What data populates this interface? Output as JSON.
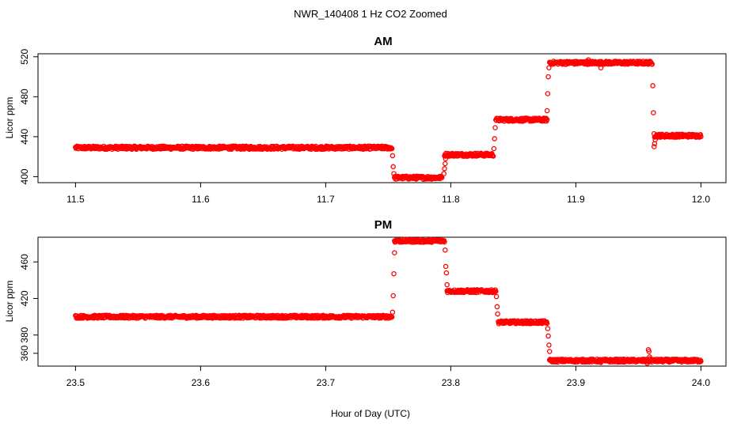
{
  "title": "NWR_140408  1 Hz CO2 Zoomed",
  "xlabel": "Hour of Day (UTC)",
  "colors": {
    "points": "#ff0000",
    "axes": "#000000",
    "background": "#ffffff"
  },
  "chart_data": [
    {
      "type": "scatter",
      "title": "AM",
      "ylabel": "Licor ppm",
      "xlim": [
        11.47,
        12.02
      ],
      "ylim": [
        394,
        523
      ],
      "xticks": [
        11.5,
        11.6,
        11.7,
        11.8,
        11.9,
        12.0
      ],
      "xtick_labels": [
        "11.5",
        "11.6",
        "11.7",
        "11.8",
        "11.9",
        "12.0"
      ],
      "yticks": [
        400,
        440,
        480,
        520
      ],
      "ytick_labels": [
        "400",
        "440",
        "480",
        "520"
      ],
      "segments": [
        {
          "x_start": 11.5,
          "x_end": 11.753,
          "level": 429
        },
        {
          "x_start": 11.755,
          "x_end": 11.793,
          "level": 399
        },
        {
          "x_start": 11.795,
          "x_end": 11.834,
          "level": 422
        },
        {
          "x_start": 11.836,
          "x_end": 11.877,
          "level": 457
        },
        {
          "x_start": 11.879,
          "x_end": 11.961,
          "level": 514
        },
        {
          "x_start": 11.963,
          "x_end": 12.0,
          "level": 441
        }
      ],
      "transition_points": [
        {
          "x": 11.7535,
          "y": 421
        },
        {
          "x": 11.754,
          "y": 410
        },
        {
          "x": 11.7545,
          "y": 403
        },
        {
          "x": 11.7945,
          "y": 403
        },
        {
          "x": 11.795,
          "y": 408
        },
        {
          "x": 11.7955,
          "y": 413
        },
        {
          "x": 11.7958,
          "y": 418
        },
        {
          "x": 11.8345,
          "y": 428
        },
        {
          "x": 11.835,
          "y": 438
        },
        {
          "x": 11.8355,
          "y": 449
        },
        {
          "x": 11.877,
          "y": 466
        },
        {
          "x": 11.8775,
          "y": 483
        },
        {
          "x": 11.878,
          "y": 500
        },
        {
          "x": 11.8785,
          "y": 509
        },
        {
          "x": 11.9615,
          "y": 491
        },
        {
          "x": 11.962,
          "y": 464
        },
        {
          "x": 11.9625,
          "y": 443
        },
        {
          "x": 11.9625,
          "y": 430
        },
        {
          "x": 11.963,
          "y": 433
        },
        {
          "x": 11.9635,
          "y": 437
        },
        {
          "x": 11.92,
          "y": 509
        },
        {
          "x": 11.91,
          "y": 517
        }
      ]
    },
    {
      "type": "scatter",
      "title": "PM",
      "ylabel": "Licor ppm",
      "xlim": [
        23.47,
        24.02
      ],
      "ylim": [
        346,
        487
      ],
      "xticks": [
        23.5,
        23.6,
        23.7,
        23.8,
        23.9,
        24.0
      ],
      "xtick_labels": [
        "23.5",
        "23.6",
        "23.7",
        "23.8",
        "23.9",
        "24.0"
      ],
      "yticks": [
        380,
        420,
        460
      ],
      "ytick_labels": [
        "380",
        "420",
        "460"
      ],
      "extra_ytick_values": [
        360
      ],
      "extra_ytick_labels": [
        "360"
      ],
      "segments": [
        {
          "x_start": 23.5,
          "x_end": 23.753,
          "level": 400
        },
        {
          "x_start": 23.755,
          "x_end": 23.795,
          "level": 483
        },
        {
          "x_start": 23.797,
          "x_end": 23.836,
          "level": 428
        },
        {
          "x_start": 23.838,
          "x_end": 23.877,
          "level": 394
        },
        {
          "x_start": 23.879,
          "x_end": 24.0,
          "level": 352
        }
      ],
      "transition_points": [
        {
          "x": 23.7535,
          "y": 405
        },
        {
          "x": 23.754,
          "y": 423
        },
        {
          "x": 23.7545,
          "y": 447
        },
        {
          "x": 23.755,
          "y": 470
        },
        {
          "x": 23.7955,
          "y": 473
        },
        {
          "x": 23.796,
          "y": 455
        },
        {
          "x": 23.7965,
          "y": 448
        },
        {
          "x": 23.797,
          "y": 435
        },
        {
          "x": 23.8365,
          "y": 422
        },
        {
          "x": 23.837,
          "y": 411
        },
        {
          "x": 23.8375,
          "y": 403
        },
        {
          "x": 23.8775,
          "y": 387
        },
        {
          "x": 23.878,
          "y": 379
        },
        {
          "x": 23.8785,
          "y": 369
        },
        {
          "x": 23.879,
          "y": 362
        },
        {
          "x": 23.958,
          "y": 364
        },
        {
          "x": 23.9585,
          "y": 362
        },
        {
          "x": 23.959,
          "y": 356
        },
        {
          "x": 23.9595,
          "y": 354
        },
        {
          "x": 23.957,
          "y": 349
        },
        {
          "x": 23.92,
          "y": 350
        }
      ]
    }
  ]
}
